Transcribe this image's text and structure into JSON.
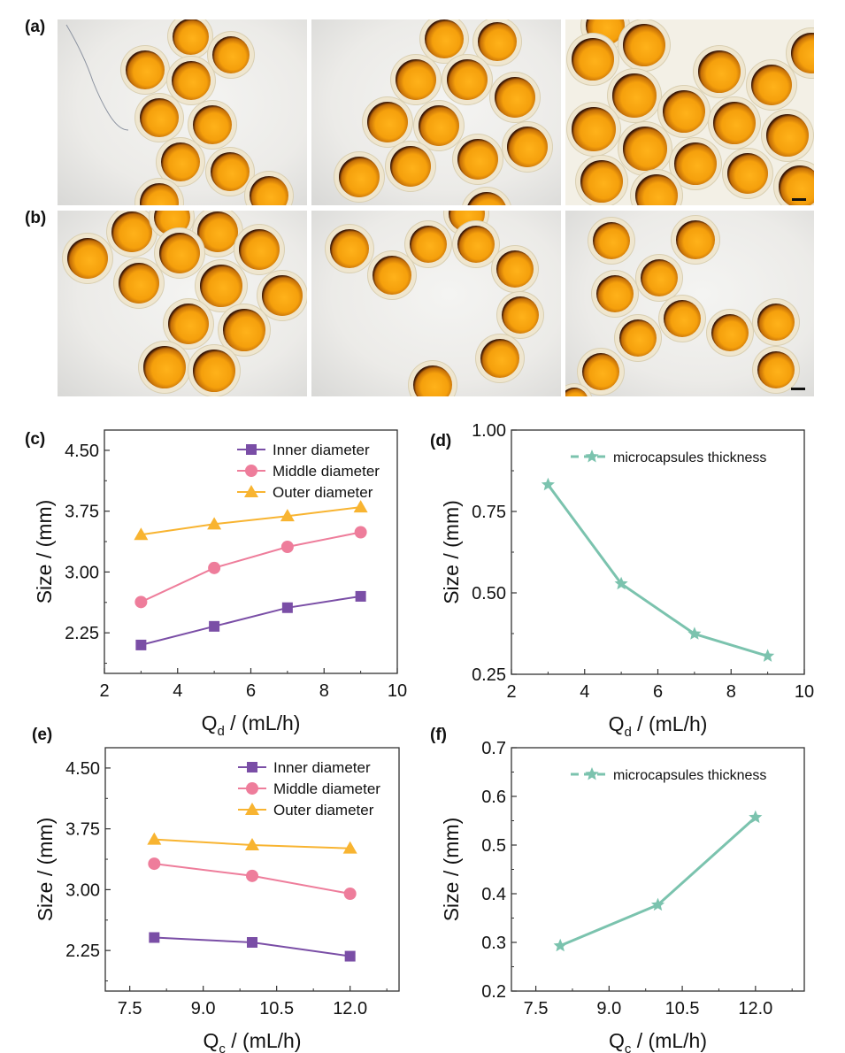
{
  "panel_labels": {
    "a": "(a)",
    "b": "(b)",
    "c": "(c)",
    "d": "(d)",
    "e": "(e)",
    "f": "(f)"
  },
  "micrographs": {
    "row_a": [
      {
        "name": "micrograph-a1",
        "scale_bar": false
      },
      {
        "name": "micrograph-a2",
        "scale_bar": false
      },
      {
        "name": "micrograph-a3",
        "scale_bar": true
      }
    ],
    "row_b": [
      {
        "name": "micrograph-b1",
        "scale_bar": false
      },
      {
        "name": "micrograph-b2",
        "scale_bar": false
      },
      {
        "name": "micrograph-b3",
        "scale_bar": true
      }
    ]
  },
  "colors": {
    "inner": "#7a4ea6",
    "middle": "#ee7d9b",
    "outer": "#f8b431",
    "thickness": "#7bc3ae",
    "axis": "#333333"
  },
  "chart_data": [
    {
      "id": "c",
      "type": "line",
      "xlabel": "Q",
      "xlabel_sub": "d",
      "xlabel_tail": " / (mL/h)",
      "ylabel": "Size / (mm)",
      "xlim": [
        2,
        10
      ],
      "ylim": [
        1.75,
        4.75
      ],
      "xticks": [
        2,
        4,
        6,
        8,
        10
      ],
      "xtick_labels": [
        "2",
        "4",
        "6",
        "8",
        "10"
      ],
      "xminor": [
        3,
        5,
        7,
        9
      ],
      "yticks": [
        2.25,
        3.0,
        3.75,
        4.5
      ],
      "ytick_labels": [
        "2.25",
        "3.00",
        "3.75",
        "4.50"
      ],
      "yminor": [
        1.875,
        2.625,
        3.375,
        4.125
      ],
      "grid": false,
      "legend_position": "top-right",
      "x": [
        3,
        5,
        7,
        9
      ],
      "series": [
        {
          "name": "Inner diameter",
          "marker": "square",
          "color_key": "inner",
          "values": [
            2.1,
            2.33,
            2.56,
            2.7
          ]
        },
        {
          "name": "Middle diameter",
          "marker": "circle",
          "color_key": "middle",
          "values": [
            2.63,
            3.05,
            3.31,
            3.49
          ]
        },
        {
          "name": "Outer diameter",
          "marker": "triangle",
          "color_key": "outer",
          "values": [
            3.46,
            3.59,
            3.69,
            3.8
          ]
        }
      ]
    },
    {
      "id": "d",
      "type": "line",
      "xlabel": "Q",
      "xlabel_sub": "d",
      "xlabel_tail": " / (mL/h)",
      "ylabel": "Size / (mm)",
      "xlim": [
        2,
        10
      ],
      "ylim": [
        0.25,
        1.0
      ],
      "xticks": [
        2,
        4,
        6,
        8,
        10
      ],
      "xtick_labels": [
        "2",
        "4",
        "6",
        "8",
        "10"
      ],
      "xminor": [
        3,
        5,
        7,
        9
      ],
      "yticks": [
        0.25,
        0.5,
        0.75,
        1.0
      ],
      "ytick_labels": [
        "0.25",
        "0.50",
        "0.75",
        "1.00"
      ],
      "yminor": [
        0.375,
        0.625,
        0.875
      ],
      "grid": false,
      "legend_position": "top-right",
      "x": [
        3,
        5,
        7,
        9
      ],
      "series": [
        {
          "name": "microcapsules thickness",
          "marker": "star",
          "color_key": "thickness",
          "values": [
            0.832,
            0.528,
            0.374,
            0.306
          ]
        }
      ]
    },
    {
      "id": "e",
      "type": "line",
      "xlabel": "Q",
      "xlabel_sub": "c",
      "xlabel_tail": " / (mL/h)",
      "ylabel": "Size / (mm)",
      "xlim": [
        7.0,
        13.0
      ],
      "ylim": [
        1.75,
        4.75
      ],
      "xticks": [
        7.5,
        9.0,
        10.5,
        12.0
      ],
      "xtick_labels": [
        "7.5",
        "9.0",
        "10.5",
        "12.0"
      ],
      "xminor": [
        8.25,
        9.75,
        11.25,
        12.75
      ],
      "yticks": [
        2.25,
        3.0,
        3.75,
        4.5
      ],
      "ytick_labels": [
        "2.25",
        "3.00",
        "3.75",
        "4.50"
      ],
      "yminor": [
        1.875,
        2.625,
        3.375,
        4.125
      ],
      "grid": false,
      "legend_position": "top-right",
      "x": [
        8,
        10,
        12
      ],
      "series": [
        {
          "name": "Inner diameter",
          "marker": "square",
          "color_key": "inner",
          "values": [
            2.41,
            2.35,
            2.18
          ]
        },
        {
          "name": "Middle diameter",
          "marker": "circle",
          "color_key": "middle",
          "values": [
            3.32,
            3.17,
            2.95
          ]
        },
        {
          "name": "Outer diameter",
          "marker": "triangle",
          "color_key": "outer",
          "values": [
            3.62,
            3.55,
            3.51
          ]
        }
      ]
    },
    {
      "id": "f",
      "type": "line",
      "xlabel": "Q",
      "xlabel_sub": "c",
      "xlabel_tail": " / (mL/h)",
      "ylabel": "Size / (mm)",
      "xlim": [
        7.0,
        13.0
      ],
      "ylim": [
        0.2,
        0.7
      ],
      "xticks": [
        7.5,
        9.0,
        10.5,
        12.0
      ],
      "xtick_labels": [
        "7.5",
        "9.0",
        "10.5",
        "12.0"
      ],
      "xminor": [
        8.25,
        9.75,
        11.25,
        12.75
      ],
      "yticks": [
        0.2,
        0.3,
        0.4,
        0.5,
        0.6,
        0.7
      ],
      "ytick_labels": [
        "0.2",
        "0.3",
        "0.4",
        "0.5",
        "0.6",
        "0.7"
      ],
      "yminor": [
        0.25,
        0.35,
        0.45,
        0.55,
        0.65
      ],
      "grid": false,
      "legend_position": "top-right",
      "x": [
        8,
        10,
        12
      ],
      "series": [
        {
          "name": "microcapsules thickness",
          "marker": "star",
          "color_key": "thickness",
          "values": [
            0.293,
            0.377,
            0.557
          ]
        }
      ]
    }
  ]
}
